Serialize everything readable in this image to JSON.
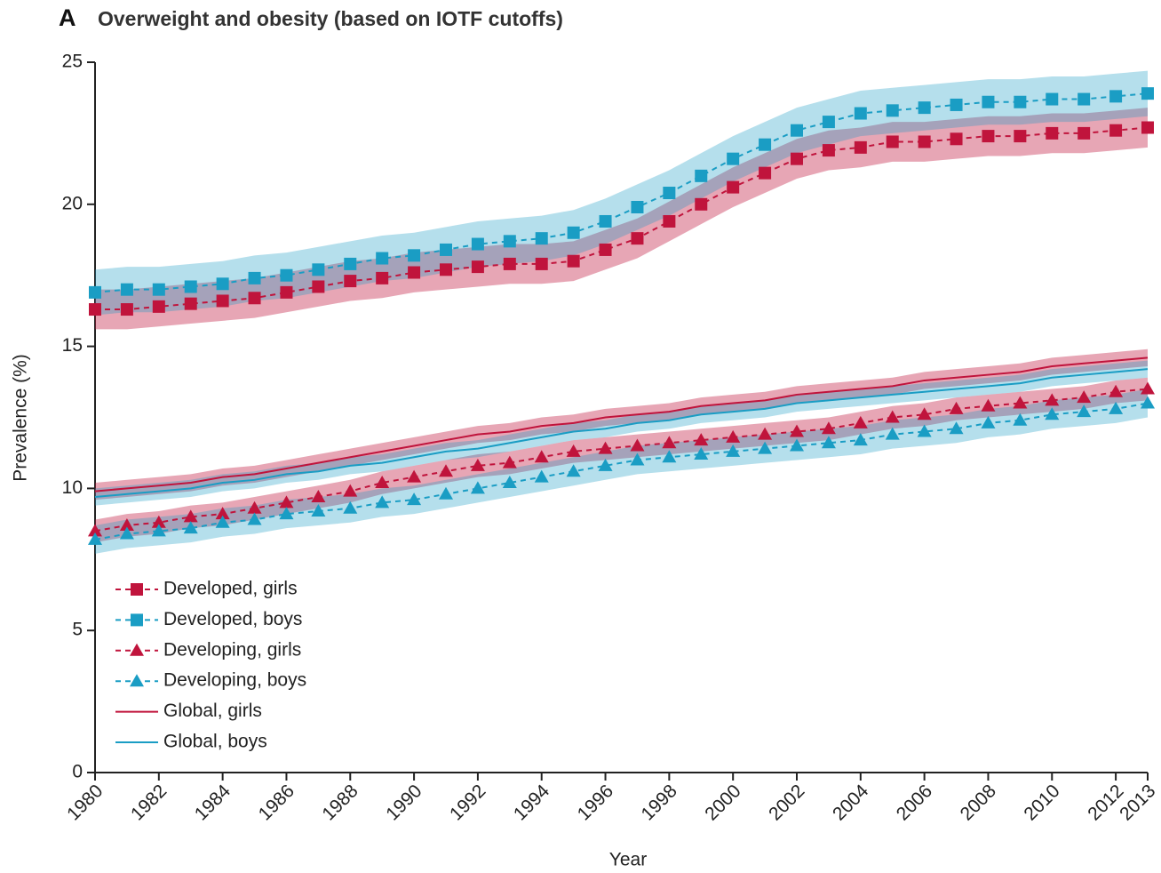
{
  "chart_data": {
    "type": "line",
    "panel_label": "A",
    "title": "Overweight and obesity (based on IOTF cutoffs)",
    "x_label": "Year",
    "y_label": "Prevalence (%)",
    "x": [
      1980,
      1981,
      1982,
      1983,
      1984,
      1985,
      1986,
      1987,
      1988,
      1989,
      1990,
      1991,
      1992,
      1993,
      1994,
      1995,
      1996,
      1997,
      1998,
      1999,
      2000,
      2001,
      2002,
      2003,
      2004,
      2005,
      2006,
      2007,
      2008,
      2009,
      2010,
      2011,
      2012,
      2013
    ],
    "xlim": [
      1980,
      2013
    ],
    "xticks": [
      1980,
      1982,
      1984,
      1986,
      1988,
      1990,
      1992,
      1994,
      1996,
      1998,
      2000,
      2002,
      2004,
      2006,
      2008,
      2010,
      2012,
      2013
    ],
    "ylim": [
      0,
      25
    ],
    "yticks": [
      0,
      5,
      10,
      15,
      20,
      25
    ],
    "legend": "lower left",
    "series": [
      {
        "name": "Developed, girls",
        "color": "#c0143c",
        "marker": "square",
        "dashed": true,
        "values": [
          16.3,
          16.3,
          16.4,
          16.5,
          16.6,
          16.7,
          16.9,
          17.1,
          17.3,
          17.4,
          17.6,
          17.7,
          17.8,
          17.9,
          17.9,
          18.0,
          18.4,
          18.8,
          19.4,
          20.0,
          20.6,
          21.1,
          21.6,
          21.9,
          22.0,
          22.2,
          22.2,
          22.3,
          22.4,
          22.4,
          22.5,
          22.5,
          22.6,
          22.7
        ],
        "lower": [
          15.6,
          15.6,
          15.7,
          15.8,
          15.9,
          16.0,
          16.2,
          16.4,
          16.6,
          16.7,
          16.9,
          17.0,
          17.1,
          17.2,
          17.2,
          17.3,
          17.7,
          18.1,
          18.7,
          19.3,
          19.9,
          20.4,
          20.9,
          21.2,
          21.3,
          21.5,
          21.5,
          21.6,
          21.7,
          21.7,
          21.8,
          21.8,
          21.9,
          22.0
        ],
        "upper": [
          17.0,
          17.0,
          17.1,
          17.2,
          17.3,
          17.4,
          17.6,
          17.8,
          18.0,
          18.1,
          18.3,
          18.4,
          18.5,
          18.6,
          18.6,
          18.7,
          19.1,
          19.5,
          20.1,
          20.7,
          21.3,
          21.8,
          22.3,
          22.6,
          22.7,
          22.9,
          22.9,
          23.0,
          23.1,
          23.1,
          23.2,
          23.2,
          23.3,
          23.4
        ]
      },
      {
        "name": "Developed, boys",
        "color": "#1a9dc4",
        "marker": "square",
        "dashed": true,
        "values": [
          16.9,
          17.0,
          17.0,
          17.1,
          17.2,
          17.4,
          17.5,
          17.7,
          17.9,
          18.1,
          18.2,
          18.4,
          18.6,
          18.7,
          18.8,
          19.0,
          19.4,
          19.9,
          20.4,
          21.0,
          21.6,
          22.1,
          22.6,
          22.9,
          23.2,
          23.3,
          23.4,
          23.5,
          23.6,
          23.6,
          23.7,
          23.7,
          23.8,
          23.9
        ],
        "lower": [
          16.1,
          16.2,
          16.2,
          16.3,
          16.4,
          16.6,
          16.7,
          16.9,
          17.1,
          17.3,
          17.4,
          17.6,
          17.8,
          17.9,
          18.0,
          18.2,
          18.6,
          19.1,
          19.6,
          20.2,
          20.8,
          21.3,
          21.8,
          22.1,
          22.4,
          22.5,
          22.6,
          22.7,
          22.8,
          22.8,
          22.9,
          22.9,
          23.0,
          23.1
        ],
        "upper": [
          17.7,
          17.8,
          17.8,
          17.9,
          18.0,
          18.2,
          18.3,
          18.5,
          18.7,
          18.9,
          19.0,
          19.2,
          19.4,
          19.5,
          19.6,
          19.8,
          20.2,
          20.7,
          21.2,
          21.8,
          22.4,
          22.9,
          23.4,
          23.7,
          24.0,
          24.1,
          24.2,
          24.3,
          24.4,
          24.4,
          24.5,
          24.5,
          24.6,
          24.7
        ]
      },
      {
        "name": "Developing, girls",
        "color": "#c0143c",
        "marker": "triangle",
        "dashed": true,
        "values": [
          8.5,
          8.7,
          8.8,
          9.0,
          9.1,
          9.3,
          9.5,
          9.7,
          9.9,
          10.2,
          10.4,
          10.6,
          10.8,
          10.9,
          11.1,
          11.3,
          11.4,
          11.5,
          11.6,
          11.7,
          11.8,
          11.9,
          12.0,
          12.1,
          12.3,
          12.5,
          12.6,
          12.8,
          12.9,
          13.0,
          13.1,
          13.2,
          13.4,
          13.5
        ],
        "lower": [
          8.1,
          8.3,
          8.4,
          8.6,
          8.7,
          8.9,
          9.1,
          9.3,
          9.5,
          9.8,
          10.0,
          10.2,
          10.4,
          10.5,
          10.7,
          10.9,
          11.0,
          11.1,
          11.2,
          11.3,
          11.4,
          11.5,
          11.6,
          11.7,
          11.9,
          12.1,
          12.2,
          12.4,
          12.5,
          12.6,
          12.7,
          12.8,
          13.0,
          13.1
        ],
        "upper": [
          8.9,
          9.1,
          9.2,
          9.4,
          9.5,
          9.7,
          9.9,
          10.1,
          10.3,
          10.6,
          10.8,
          11.0,
          11.2,
          11.3,
          11.5,
          11.7,
          11.8,
          11.9,
          12.0,
          12.1,
          12.2,
          12.3,
          12.4,
          12.5,
          12.7,
          12.9,
          13.0,
          13.2,
          13.3,
          13.4,
          13.5,
          13.6,
          13.8,
          13.9
        ]
      },
      {
        "name": "Developing, boys",
        "color": "#1a9dc4",
        "marker": "triangle",
        "dashed": true,
        "values": [
          8.2,
          8.4,
          8.5,
          8.6,
          8.8,
          8.9,
          9.1,
          9.2,
          9.3,
          9.5,
          9.6,
          9.8,
          10.0,
          10.2,
          10.4,
          10.6,
          10.8,
          11.0,
          11.1,
          11.2,
          11.3,
          11.4,
          11.5,
          11.6,
          11.7,
          11.9,
          12.0,
          12.1,
          12.3,
          12.4,
          12.6,
          12.7,
          12.8,
          13.0
        ],
        "lower": [
          7.7,
          7.9,
          8.0,
          8.1,
          8.3,
          8.4,
          8.6,
          8.7,
          8.8,
          9.0,
          9.1,
          9.3,
          9.5,
          9.7,
          9.9,
          10.1,
          10.3,
          10.5,
          10.6,
          10.7,
          10.8,
          10.9,
          11.0,
          11.1,
          11.2,
          11.4,
          11.5,
          11.6,
          11.8,
          11.9,
          12.1,
          12.2,
          12.3,
          12.5
        ],
        "upper": [
          8.7,
          8.9,
          9.0,
          9.1,
          9.3,
          9.4,
          9.6,
          9.7,
          9.8,
          10.0,
          10.1,
          10.3,
          10.5,
          10.7,
          10.9,
          11.1,
          11.3,
          11.5,
          11.6,
          11.7,
          11.8,
          11.9,
          12.0,
          12.1,
          12.2,
          12.4,
          12.5,
          12.6,
          12.8,
          12.9,
          13.1,
          13.2,
          13.3,
          13.5
        ]
      },
      {
        "name": "Global, girls",
        "color": "#c0143c",
        "marker": null,
        "dashed": false,
        "values": [
          9.9,
          10.0,
          10.1,
          10.2,
          10.4,
          10.5,
          10.7,
          10.9,
          11.1,
          11.3,
          11.5,
          11.7,
          11.9,
          12.0,
          12.2,
          12.3,
          12.5,
          12.6,
          12.7,
          12.9,
          13.0,
          13.1,
          13.3,
          13.4,
          13.5,
          13.6,
          13.8,
          13.9,
          14.0,
          14.1,
          14.3,
          14.4,
          14.5,
          14.6
        ],
        "lower": [
          9.6,
          9.7,
          9.8,
          9.9,
          10.1,
          10.2,
          10.4,
          10.6,
          10.8,
          11.0,
          11.2,
          11.4,
          11.6,
          11.7,
          11.9,
          12.0,
          12.2,
          12.3,
          12.4,
          12.6,
          12.7,
          12.8,
          13.0,
          13.1,
          13.2,
          13.3,
          13.5,
          13.6,
          13.7,
          13.8,
          14.0,
          14.1,
          14.2,
          14.3
        ],
        "upper": [
          10.2,
          10.3,
          10.4,
          10.5,
          10.7,
          10.8,
          11.0,
          11.2,
          11.4,
          11.6,
          11.8,
          12.0,
          12.2,
          12.3,
          12.5,
          12.6,
          12.8,
          12.9,
          13.0,
          13.2,
          13.3,
          13.4,
          13.6,
          13.7,
          13.8,
          13.9,
          14.1,
          14.2,
          14.3,
          14.4,
          14.6,
          14.7,
          14.8,
          14.9
        ]
      },
      {
        "name": "Global, boys",
        "color": "#1a9dc4",
        "marker": null,
        "dashed": false,
        "values": [
          9.7,
          9.8,
          9.9,
          10.0,
          10.2,
          10.3,
          10.5,
          10.6,
          10.8,
          10.9,
          11.1,
          11.3,
          11.4,
          11.6,
          11.8,
          12.0,
          12.1,
          12.3,
          12.4,
          12.6,
          12.7,
          12.8,
          13.0,
          13.1,
          13.2,
          13.3,
          13.4,
          13.5,
          13.6,
          13.7,
          13.9,
          14.0,
          14.1,
          14.2
        ],
        "lower": [
          9.4,
          9.5,
          9.6,
          9.7,
          9.9,
          10.0,
          10.2,
          10.3,
          10.5,
          10.6,
          10.8,
          11.0,
          11.1,
          11.3,
          11.5,
          11.7,
          11.8,
          12.0,
          12.1,
          12.3,
          12.4,
          12.5,
          12.7,
          12.8,
          12.9,
          13.0,
          13.1,
          13.2,
          13.3,
          13.4,
          13.6,
          13.7,
          13.8,
          13.9
        ],
        "upper": [
          10.0,
          10.1,
          10.2,
          10.3,
          10.5,
          10.6,
          10.8,
          10.9,
          11.1,
          11.2,
          11.4,
          11.6,
          11.7,
          11.9,
          12.1,
          12.3,
          12.4,
          12.6,
          12.7,
          12.9,
          13.0,
          13.1,
          13.3,
          13.4,
          13.5,
          13.6,
          13.7,
          13.8,
          13.9,
          14.0,
          14.2,
          14.3,
          14.4,
          14.5
        ]
      }
    ]
  }
}
